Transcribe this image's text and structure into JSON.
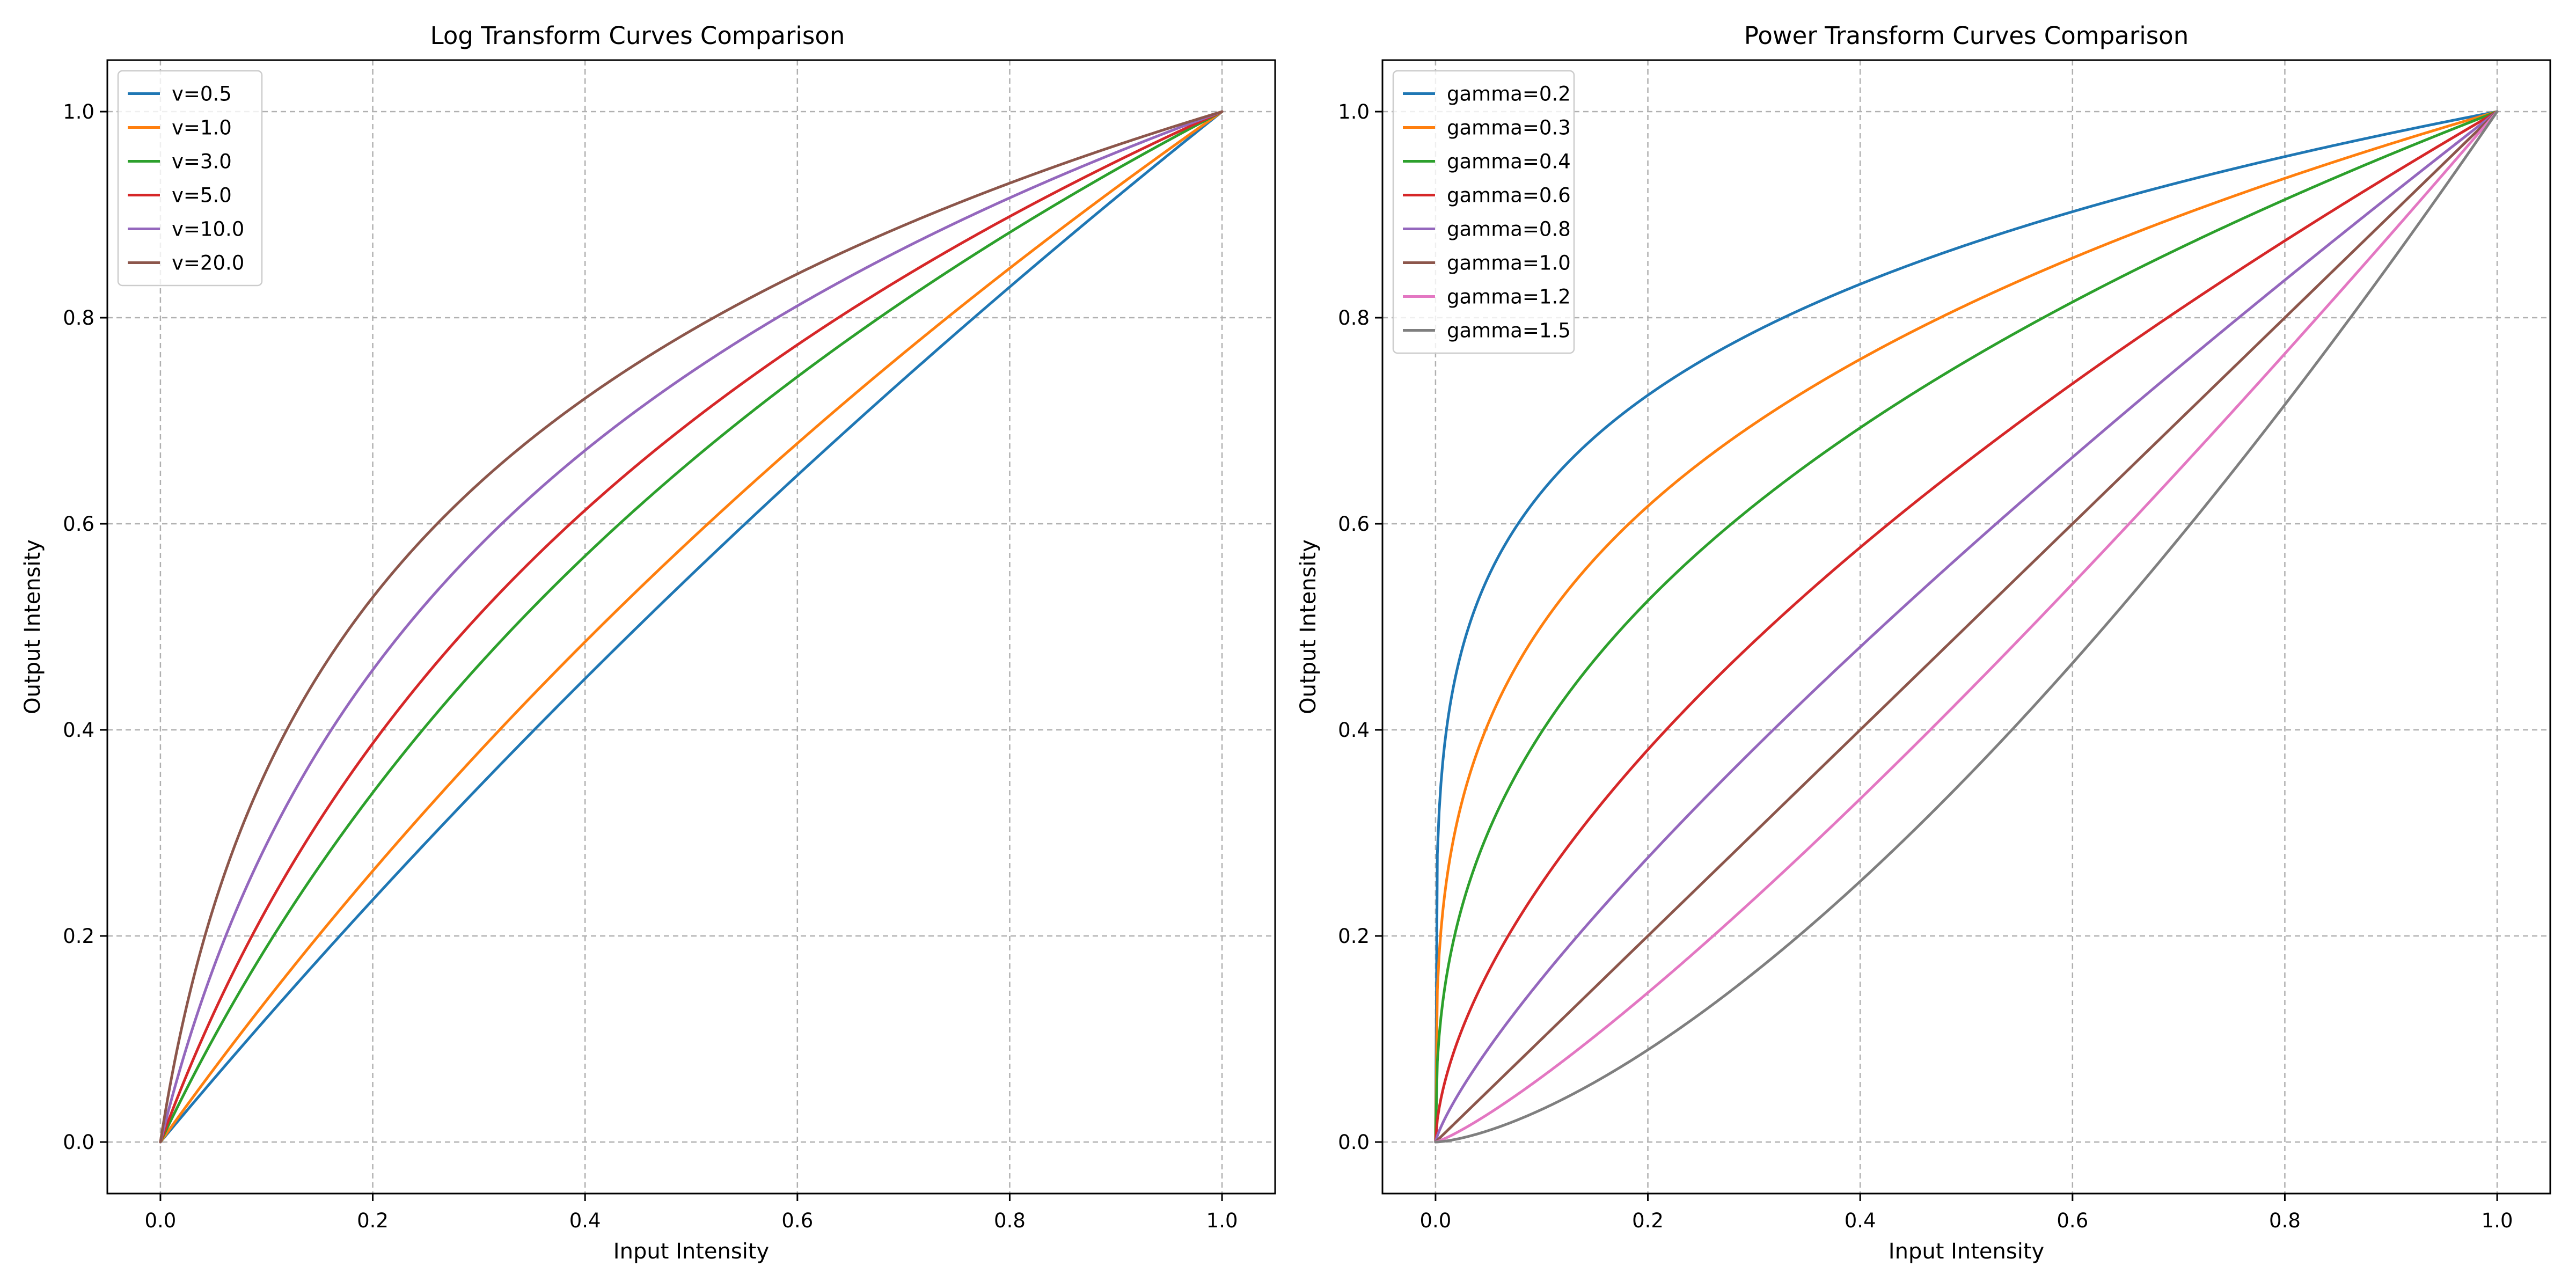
{
  "chart_data": [
    {
      "type": "line",
      "title": "Log Transform Curves Comparison",
      "xlabel": "Input Intensity",
      "ylabel": "Output Intensity",
      "xlim": [
        -0.05,
        1.05
      ],
      "ylim": [
        -0.05,
        1.05
      ],
      "xticks": [
        "0.0",
        "0.2",
        "0.4",
        "0.6",
        "0.8",
        "1.0"
      ],
      "yticks": [
        "0.0",
        "0.2",
        "0.4",
        "0.6",
        "0.8",
        "1.0"
      ],
      "grid": true,
      "legend_position": "top-left",
      "function": "y = log(1 + v*x) / log(1 + v)",
      "x_range": [
        0,
        1
      ],
      "series": [
        {
          "name": "v=0.5",
          "param": 0.5,
          "color": "#1f77b4"
        },
        {
          "name": "v=1.0",
          "param": 1.0,
          "color": "#ff7f0e"
        },
        {
          "name": "v=3.0",
          "param": 3.0,
          "color": "#2ca02c"
        },
        {
          "name": "v=5.0",
          "param": 5.0,
          "color": "#d62728"
        },
        {
          "name": "v=10.0",
          "param": 10.0,
          "color": "#9467bd"
        },
        {
          "name": "v=20.0",
          "param": 20.0,
          "color": "#8c564b"
        }
      ]
    },
    {
      "type": "line",
      "title": "Power Transform Curves Comparison",
      "xlabel": "Input Intensity",
      "ylabel": "Output Intensity",
      "xlim": [
        -0.05,
        1.05
      ],
      "ylim": [
        -0.05,
        1.05
      ],
      "xticks": [
        "0.0",
        "0.2",
        "0.4",
        "0.6",
        "0.8",
        "1.0"
      ],
      "yticks": [
        "0.0",
        "0.2",
        "0.4",
        "0.6",
        "0.8",
        "1.0"
      ],
      "grid": true,
      "legend_position": "top-left",
      "function": "y = x^gamma",
      "x_range": [
        0,
        1
      ],
      "series": [
        {
          "name": "gamma=0.2",
          "param": 0.2,
          "color": "#1f77b4"
        },
        {
          "name": "gamma=0.3",
          "param": 0.3,
          "color": "#ff7f0e"
        },
        {
          "name": "gamma=0.4",
          "param": 0.4,
          "color": "#2ca02c"
        },
        {
          "name": "gamma=0.6",
          "param": 0.6,
          "color": "#d62728"
        },
        {
          "name": "gamma=0.8",
          "param": 0.8,
          "color": "#9467bd"
        },
        {
          "name": "gamma=1.0",
          "param": 1.0,
          "color": "#8c564b"
        },
        {
          "name": "gamma=1.2",
          "param": 1.2,
          "color": "#e377c2"
        },
        {
          "name": "gamma=1.5",
          "param": 1.5,
          "color": "#7f7f7f"
        }
      ]
    }
  ]
}
